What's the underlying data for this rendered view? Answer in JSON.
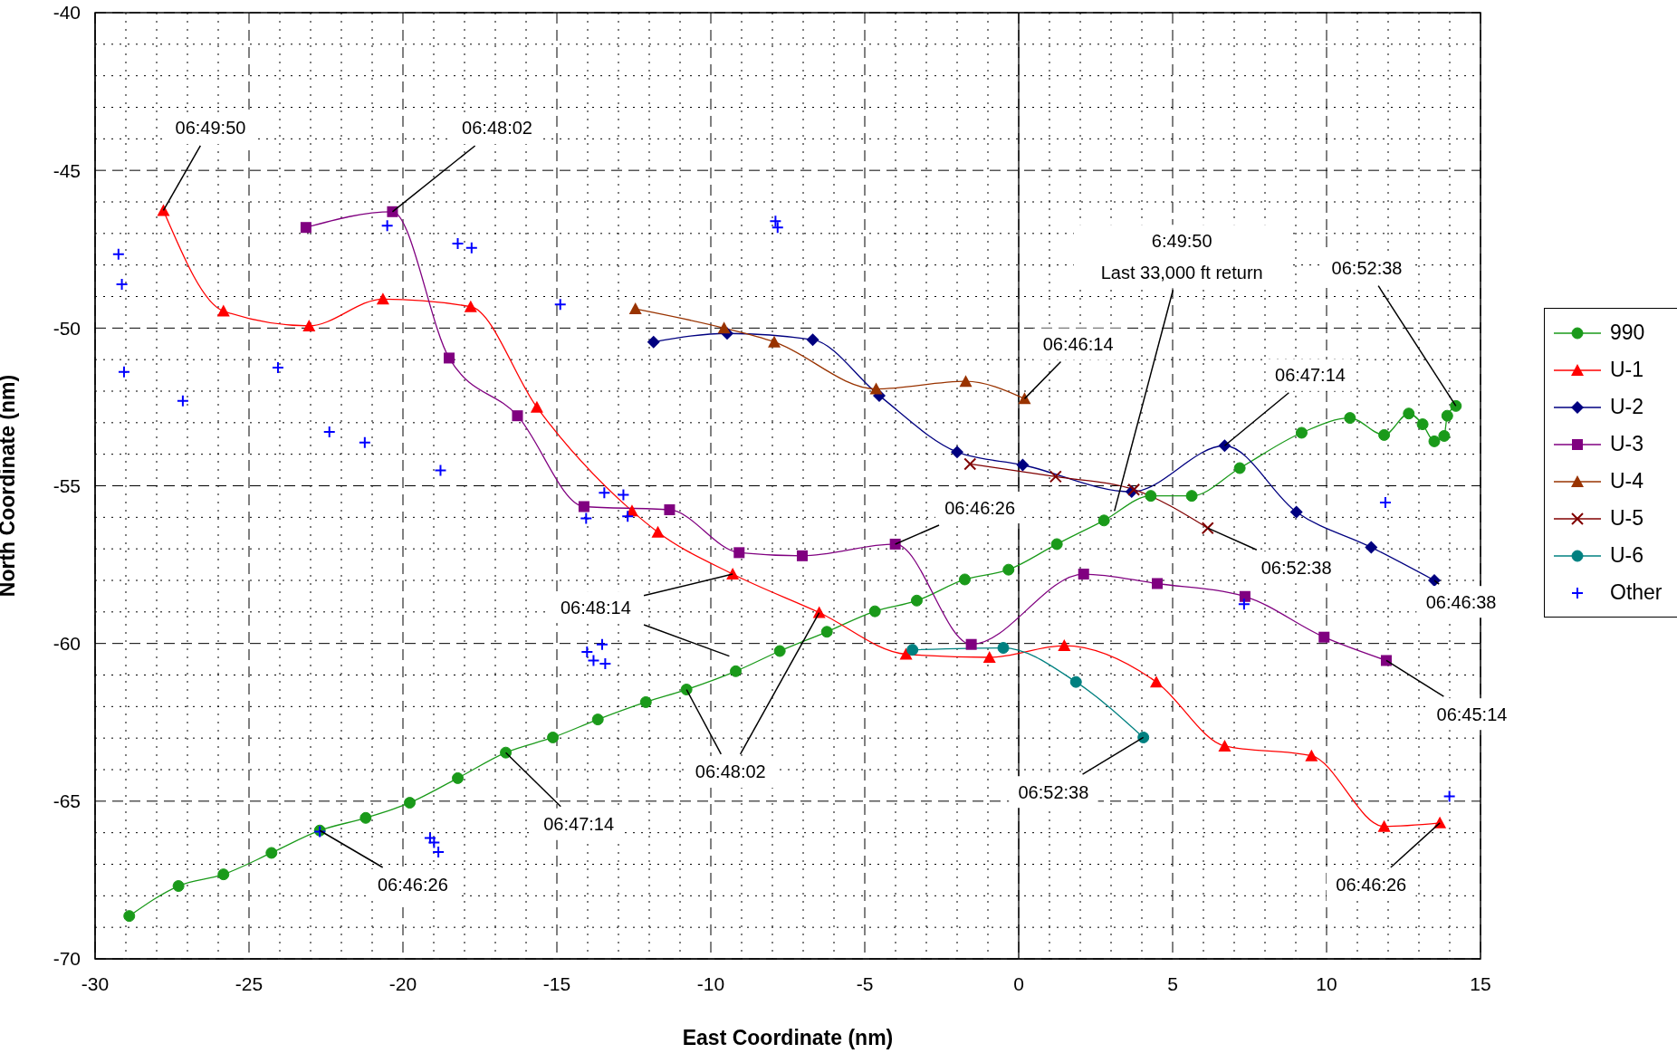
{
  "chart_data": {
    "type": "line",
    "xlabel": "East Coordinate (nm)",
    "ylabel": "North Coordinate (nm)",
    "xlim": [
      -30,
      15
    ],
    "xticks": [
      -30,
      -25,
      -20,
      -15,
      -10,
      -5,
      0,
      5,
      10,
      15
    ],
    "ylim": [
      -70,
      -40
    ],
    "yticks": [
      -70,
      -65,
      -60,
      -55,
      -50,
      -45,
      -40
    ],
    "grid": true,
    "legend": "right",
    "ref_lines": [
      {
        "axis": "x",
        "value": 0,
        "color": "#000000"
      }
    ],
    "series": [
      {
        "name": "990",
        "color": "#1a9a1a",
        "marker": "circle",
        "x": [
          -28.89,
          -27.29,
          -25.83,
          -24.27,
          -22.7,
          -21.21,
          -19.78,
          -18.22,
          -16.66,
          -15.13,
          -13.67,
          -12.11,
          -10.79,
          -9.19,
          -7.76,
          -6.23,
          -4.67,
          -3.31,
          -1.75,
          -0.33,
          1.24,
          2.77,
          4.29,
          5.62,
          7.18,
          9.19,
          10.76,
          11.87,
          12.67,
          13.12,
          13.5,
          13.82,
          13.92,
          14.2
        ],
        "values": [
          -68.64,
          -67.69,
          -67.32,
          -66.64,
          -65.93,
          -65.53,
          -65.05,
          -64.27,
          -63.46,
          -62.98,
          -62.41,
          -61.86,
          -61.46,
          -60.88,
          -60.24,
          -59.63,
          -58.98,
          -58.64,
          -57.97,
          -57.66,
          -56.85,
          -56.1,
          -55.32,
          -55.32,
          -54.44,
          -53.32,
          -52.85,
          -53.39,
          -52.71,
          -53.05,
          -53.59,
          -53.42,
          -52.78,
          -52.47
        ]
      },
      {
        "name": "U-1",
        "color": "#ff0000",
        "marker": "triangle",
        "x": [
          -27.78,
          -25.83,
          -23.05,
          -20.65,
          -17.8,
          -15.65,
          -12.56,
          -11.72,
          -9.29,
          -6.48,
          -3.66,
          -0.95,
          1.48,
          4.47,
          6.69,
          9.51,
          11.87,
          13.68
        ],
        "values": [
          -46.27,
          -49.46,
          -49.93,
          -49.08,
          -49.32,
          -52.51,
          -55.8,
          -56.47,
          -57.8,
          -59.02,
          -60.34,
          -60.44,
          -60.07,
          -61.22,
          -63.25,
          -63.56,
          -65.8,
          -65.69
        ]
      },
      {
        "name": "U-2",
        "color": "#000080",
        "marker": "diamond",
        "x": [
          -11.86,
          -9.47,
          -6.69,
          -4.53,
          -2.0,
          0.13,
          3.67,
          6.69,
          9.02,
          11.45,
          13.5
        ],
        "values": [
          -50.44,
          -50.17,
          -50.37,
          -52.14,
          -53.93,
          -54.34,
          -55.19,
          -53.73,
          -55.83,
          -56.95,
          -58.0
        ]
      },
      {
        "name": "U-3",
        "color": "#800080",
        "marker": "square",
        "x": [
          -23.15,
          -20.34,
          -18.5,
          -16.28,
          -14.12,
          -11.34,
          -9.08,
          -7.03,
          -4.01,
          -1.54,
          2.11,
          4.5,
          7.35,
          9.92,
          11.94
        ],
        "values": [
          -46.81,
          -46.31,
          -50.95,
          -52.78,
          -55.66,
          -55.76,
          -57.12,
          -57.22,
          -56.85,
          -60.03,
          -57.8,
          -58.1,
          -58.51,
          -59.8,
          -60.54
        ]
      },
      {
        "name": "U-4",
        "color": "#993300",
        "marker": "triangle",
        "x": [
          -12.45,
          -9.57,
          -7.94,
          -4.63,
          -1.72,
          0.19
        ],
        "values": [
          -49.39,
          -50.0,
          -50.44,
          -51.93,
          -51.69,
          -52.24
        ]
      },
      {
        "name": "U-5",
        "color": "#800000",
        "marker": "cross",
        "x": [
          -1.58,
          1.2,
          3.74,
          6.14
        ],
        "values": [
          -54.31,
          -54.71,
          -55.12,
          -56.34
        ]
      },
      {
        "name": "U-6",
        "color": "#008080",
        "marker": "circle",
        "x": [
          -3.45,
          -0.5,
          1.86,
          4.05
        ],
        "values": [
          -60.2,
          -60.14,
          -61.22,
          -62.98
        ]
      },
      {
        "name": "Other",
        "color": "#0000ff",
        "type": "scatter",
        "marker": "cross",
        "x": [
          -29.24,
          -29.13,
          -29.06,
          -27.15,
          -24.06,
          -22.39,
          -21.24,
          -20.51,
          -18.78,
          -18.22,
          -17.77,
          -14.89,
          -14.05,
          -13.46,
          -12.84,
          -12.7,
          -14.02,
          -13.81,
          -13.53,
          -13.43,
          -7.9,
          -7.83,
          -22.7,
          -19.12,
          -18.99,
          -18.85,
          7.32,
          11.91,
          13.99
        ],
        "values": [
          -47.66,
          -48.61,
          -51.39,
          -52.31,
          -51.25,
          -53.29,
          -53.63,
          -46.75,
          -54.51,
          -47.32,
          -47.46,
          -49.25,
          -56.03,
          -55.22,
          -55.29,
          -55.97,
          -60.27,
          -60.54,
          -60.03,
          -60.64,
          -46.61,
          -46.81,
          -65.97,
          -66.17,
          -66.31,
          -66.61,
          -58.75,
          -55.53,
          -64.85
        ]
      }
    ],
    "annotations": [
      {
        "text": "06:49:50",
        "x": -27.78,
        "y": -46.27
      },
      {
        "text": "06:48:02",
        "x": -20.34,
        "y": -46.31
      },
      {
        "text": "6:49:50\nLast 33,000 ft return",
        "x": 3.11,
        "y": -55.8
      },
      {
        "text": "06:52:38",
        "x": 14.2,
        "y": -52.47
      },
      {
        "text": "06:46:14",
        "x": 0.19,
        "y": -52.24
      },
      {
        "text": "06:47:14",
        "x": 6.69,
        "y": -53.73
      },
      {
        "text": "06:46:26",
        "x": -4.01,
        "y": -56.85
      },
      {
        "text": "06:52:38",
        "x": 6.14,
        "y": -56.34
      },
      {
        "text": "06:46:38",
        "x": 13.5,
        "y": -58.0
      },
      {
        "text": "06:48:14",
        "x": -9.29,
        "y": -57.8
      },
      {
        "text": "06:48:02",
        "x": -10.79,
        "y": -61.46
      },
      {
        "text": "06:45:14",
        "x": 11.94,
        "y": -60.54
      },
      {
        "text": "06:52:38",
        "x": 4.05,
        "y": -62.98
      },
      {
        "text": "06:47:14",
        "x": -16.66,
        "y": -63.46
      },
      {
        "text": "06:46:26",
        "x": -22.7,
        "y": -65.93
      },
      {
        "text": "06:46:26",
        "x": 13.68,
        "y": -65.69
      }
    ]
  }
}
